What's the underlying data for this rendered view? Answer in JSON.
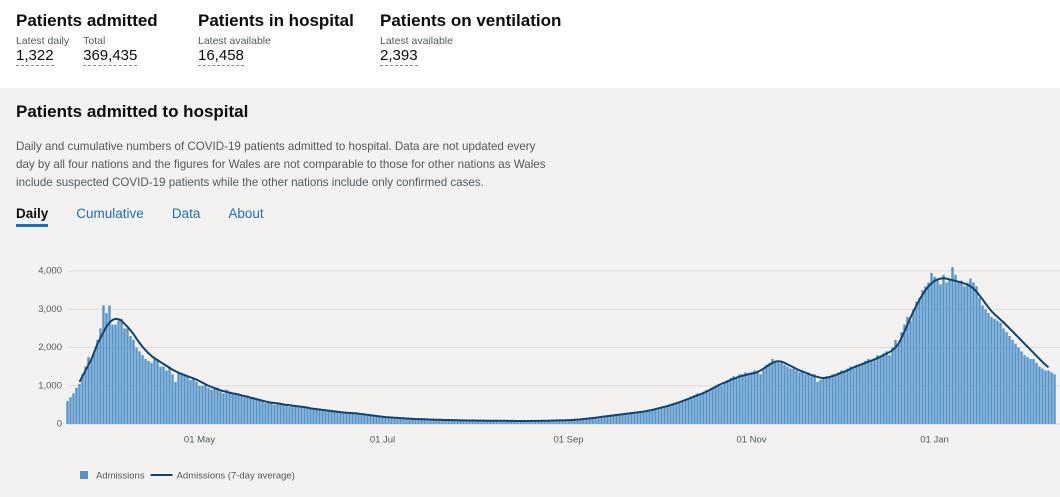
{
  "headline": [
    {
      "title": "Patients admitted",
      "metrics": [
        {
          "label": "Latest daily",
          "value": "1,322"
        },
        {
          "label": "Total",
          "value": "369,435"
        }
      ]
    },
    {
      "title": "Patients in hospital",
      "metrics": [
        {
          "label": "Latest available",
          "value": "16,458"
        }
      ]
    },
    {
      "title": "Patients on ventilation",
      "metrics": [
        {
          "label": "Latest available",
          "value": "2,393"
        }
      ]
    }
  ],
  "section": {
    "title": "Patients admitted to hospital",
    "description": "Daily and cumulative numbers of COVID-19 patients admitted to hospital. Data are not updated every day by all four nations and the figures for Wales are not comparable to those for other nations as Wales include suspected COVID-19 patients while the other nations include only confirmed cases.",
    "tabs": [
      "Daily",
      "Cumulative",
      "Data",
      "About"
    ]
  },
  "chart_data": {
    "type": "bar",
    "ylim": [
      0,
      4300
    ],
    "yticks": [
      0,
      {
        "value": 1000,
        "label": "1,000"
      },
      {
        "value": 2000,
        "label": "2,000"
      },
      {
        "value": 3000,
        "label": "3,000"
      },
      {
        "value": 4000,
        "label": "4,000"
      }
    ],
    "grid": true,
    "categories": [
      null,
      null,
      null,
      null,
      null,
      null,
      null,
      null,
      null,
      null,
      null,
      null,
      null,
      null,
      null,
      null,
      null,
      null,
      null,
      null,
      null,
      null,
      null,
      null,
      null,
      null,
      null,
      null,
      null,
      null,
      null,
      null,
      null,
      null,
      null,
      null,
      null,
      null,
      null,
      null,
      null,
      null,
      null,
      null,
      "01 May",
      null,
      null,
      null,
      null,
      null,
      null,
      null,
      null,
      null,
      null,
      null,
      null,
      null,
      null,
      null,
      null,
      null,
      null,
      null,
      null,
      null,
      null,
      null,
      null,
      null,
      null,
      null,
      null,
      null,
      null,
      null,
      null,
      null,
      null,
      null,
      null,
      null,
      null,
      null,
      null,
      null,
      null,
      null,
      null,
      null,
      null,
      null,
      null,
      null,
      null,
      null,
      null,
      null,
      null,
      null,
      null,
      null,
      null,
      null,
      null,
      "01 Jul",
      null,
      null,
      null,
      null,
      null,
      null,
      null,
      null,
      null,
      null,
      null,
      null,
      null,
      null,
      null,
      null,
      null,
      null,
      null,
      null,
      null,
      null,
      null,
      null,
      null,
      null,
      null,
      null,
      null,
      null,
      null,
      null,
      null,
      null,
      null,
      null,
      null,
      null,
      null,
      null,
      null,
      null,
      null,
      null,
      null,
      null,
      null,
      null,
      null,
      null,
      null,
      null,
      null,
      null,
      null,
      null,
      null,
      null,
      null,
      null,
      null,
      "01 Sep",
      null,
      null,
      null,
      null,
      null,
      null,
      null,
      null,
      null,
      null,
      null,
      null,
      null,
      null,
      null,
      null,
      null,
      null,
      null,
      null,
      null,
      null,
      null,
      null,
      null,
      null,
      null,
      null,
      null,
      null,
      null,
      null,
      null,
      null,
      null,
      null,
      null,
      null,
      null,
      null,
      null,
      null,
      null,
      null,
      null,
      null,
      null,
      null,
      null,
      null,
      null,
      null,
      null,
      null,
      null,
      null,
      null,
      null,
      null,
      null,
      "01 Nov",
      null,
      null,
      null,
      null,
      null,
      null,
      null,
      null,
      null,
      null,
      null,
      null,
      null,
      null,
      null,
      null,
      null,
      null,
      null,
      null,
      null,
      null,
      null,
      null,
      null,
      null,
      null,
      null,
      null,
      null,
      null,
      null,
      null,
      null,
      null,
      null,
      null,
      null,
      null,
      null,
      null,
      null,
      null,
      null,
      null,
      null,
      null,
      null,
      null,
      null,
      null,
      null,
      null,
      null,
      null,
      null,
      null,
      null,
      null,
      null,
      "01 Jan",
      null,
      null,
      null,
      null,
      null,
      null,
      null,
      null,
      null,
      null,
      null,
      null,
      null,
      null,
      null,
      null,
      null,
      null,
      null,
      null,
      null,
      null,
      null,
      null,
      null,
      null,
      null,
      null,
      null,
      null,
      null,
      null,
      null,
      null,
      null,
      null,
      null,
      null,
      null,
      null
    ],
    "series": [
      {
        "name": "Admissions",
        "type": "bar",
        "color": "#5694ca",
        "values": [
          600,
          700,
          800,
          950,
          1050,
          1300,
          1500,
          1750,
          1700,
          1900,
          2200,
          2500,
          3100,
          2900,
          3100,
          2600,
          2600,
          2700,
          2750,
          2500,
          2500,
          2300,
          2200,
          2000,
          1900,
          1800,
          1700,
          1650,
          1600,
          1700,
          1700,
          1500,
          1500,
          1400,
          1500,
          1300,
          1100,
          1350,
          1300,
          1300,
          1250,
          1150,
          1200,
          1100,
          1000,
          1000,
          1050,
          950,
          900,
          950,
          950,
          850,
          800,
          900,
          850,
          800,
          800,
          800,
          750,
          700,
          750,
          700,
          700,
          650,
          650,
          600,
          550,
          600,
          550,
          500,
          550,
          550,
          500,
          500,
          450,
          480,
          480,
          460,
          450,
          420,
          420,
          400,
          380,
          400,
          400,
          380,
          350,
          350,
          340,
          330,
          330,
          320,
          300,
          300,
          290,
          300,
          280,
          270,
          260,
          280,
          260,
          240,
          230,
          220,
          220,
          200,
          190,
          180,
          170,
          170,
          160,
          160,
          150,
          150,
          140,
          140,
          130,
          130,
          130,
          120,
          120,
          120,
          110,
          110,
          110,
          110,
          100,
          100,
          100,
          100,
          100,
          95,
          95,
          95,
          90,
          90,
          90,
          90,
          90,
          85,
          85,
          85,
          85,
          85,
          85,
          85,
          85,
          80,
          80,
          80,
          80,
          80,
          80,
          80,
          80,
          80,
          85,
          85,
          85,
          85,
          85,
          90,
          90,
          90,
          95,
          95,
          100,
          100,
          110,
          110,
          120,
          120,
          130,
          140,
          150,
          160,
          170,
          180,
          190,
          200,
          210,
          220,
          230,
          240,
          250,
          260,
          270,
          280,
          290,
          300,
          310,
          320,
          330,
          340,
          360,
          380,
          400,
          420,
          440,
          460,
          480,
          500,
          520,
          550,
          580,
          610,
          640,
          680,
          720,
          760,
          800,
          760,
          840,
          880,
          900,
          950,
          1000,
          1050,
          1000,
          1100,
          1150,
          1200,
          1250,
          1200,
          1300,
          1300,
          1350,
          1300,
          1350,
          1400,
          1350,
          1300,
          1450,
          1550,
          1600,
          1700,
          1650,
          1600,
          1600,
          1550,
          1500,
          1450,
          1450,
          1400,
          1350,
          1400,
          1300,
          1350,
          1250,
          1300,
          1100,
          1150,
          1200,
          1250,
          1250,
          1300,
          1300,
          1350,
          1400,
          1350,
          1450,
          1500,
          1450,
          1550,
          1550,
          1600,
          1650,
          1700,
          1650,
          1700,
          1800,
          1750,
          1850,
          1900,
          1800,
          2000,
          2200,
          2100,
          2400,
          2600,
          2800,
          2700,
          3000,
          3200,
          3300,
          3500,
          3600,
          3700,
          3950,
          3850,
          3800,
          3650,
          3900,
          3700,
          3800,
          4100,
          3900,
          3700,
          3750,
          3600,
          3700,
          3800,
          3700,
          3600,
          3300,
          3100,
          3000,
          2900,
          2800,
          2750,
          2700,
          2650,
          2500,
          2400,
          2300,
          2200,
          2100,
          2000,
          1900,
          1800,
          1750,
          1700,
          1700,
          1600,
          1500,
          1450,
          1400,
          1400,
          1350,
          1300
        ]
      },
      {
        "name": "Admissions (7-day average)",
        "type": "line",
        "color": "#12436d",
        "values": [
          null,
          null,
          null,
          null,
          1100,
          1250,
          1400,
          1550,
          1700,
          1900,
          2100,
          2250,
          2400,
          2550,
          2650,
          2720,
          2750,
          2740,
          2700,
          2620,
          2540,
          2450,
          2350,
          2230,
          2120,
          2020,
          1930,
          1850,
          1780,
          1720,
          1670,
          1620,
          1570,
          1520,
          1470,
          1420,
          1380,
          1340,
          1310,
          1280,
          1250,
          1220,
          1190,
          1160,
          1120,
          1080,
          1040,
          1000,
          970,
          940,
          910,
          880,
          860,
          840,
          820,
          800,
          790,
          770,
          750,
          730,
          710,
          690,
          670,
          650,
          630,
          610,
          590,
          570,
          560,
          550,
          540,
          530,
          510,
          500,
          490,
          480,
          470,
          460,
          450,
          440,
          430,
          410,
          400,
          390,
          380,
          370,
          360,
          350,
          340,
          330,
          320,
          310,
          300,
          295,
          290,
          285,
          280,
          270,
          260,
          250,
          240,
          230,
          220,
          210,
          200,
          190,
          180,
          175,
          170,
          165,
          160,
          155,
          150,
          145,
          140,
          135,
          130,
          128,
          126,
          124,
          120,
          118,
          115,
          112,
          110,
          108,
          105,
          103,
          100,
          100,
          98,
          96,
          94,
          92,
          90,
          90,
          90,
          88,
          88,
          87,
          86,
          86,
          85,
          85,
          85,
          84,
          84,
          83,
          82,
          81,
          80,
          80,
          80,
          80,
          80,
          81,
          82,
          83,
          84,
          85,
          86,
          88,
          90,
          92,
          94,
          96,
          99,
          102,
          106,
          110,
          116,
          122,
          130,
          138,
          146,
          155,
          165,
          175,
          185,
          195,
          205,
          215,
          225,
          235,
          245,
          255,
          265,
          275,
          285,
          295,
          305,
          315,
          325,
          340,
          355,
          370,
          390,
          410,
          430,
          450,
          470,
          495,
          520,
          545,
          570,
          600,
          630,
          660,
          690,
          720,
          750,
          780,
          810,
          850,
          890,
          930,
          970,
          1010,
          1050,
          1080,
          1110,
          1150,
          1180,
          1210,
          1240,
          1260,
          1280,
          1300,
          1320,
          1330,
          1360,
          1400,
          1450,
          1500,
          1550,
          1600,
          1630,
          1640,
          1630,
          1600,
          1560,
          1520,
          1480,
          1440,
          1400,
          1370,
          1340,
          1310,
          1280,
          1250,
          1230,
          1210,
          1200,
          1210,
          1230,
          1250,
          1280,
          1310,
          1340,
          1370,
          1400,
          1440,
          1480,
          1510,
          1540,
          1570,
          1600,
          1630,
          1660,
          1690,
          1720,
          1760,
          1800,
          1840,
          1880,
          1930,
          2000,
          2100,
          2250,
          2420,
          2600,
          2780,
          2950,
          3100,
          3250,
          3380,
          3500,
          3600,
          3680,
          3740,
          3780,
          3800,
          3810,
          3800,
          3780,
          3760,
          3740,
          3720,
          3700,
          3670,
          3640,
          3600,
          3540,
          3460,
          3360,
          3260,
          3150,
          3050,
          2950,
          2870,
          2800,
          2730,
          2660,
          2580,
          2500,
          2420,
          2340,
          2260,
          2180,
          2100,
          2020,
          1940,
          1860,
          1780,
          1700,
          1620,
          1550,
          1480,
          null,
          null
        ]
      }
    ]
  }
}
